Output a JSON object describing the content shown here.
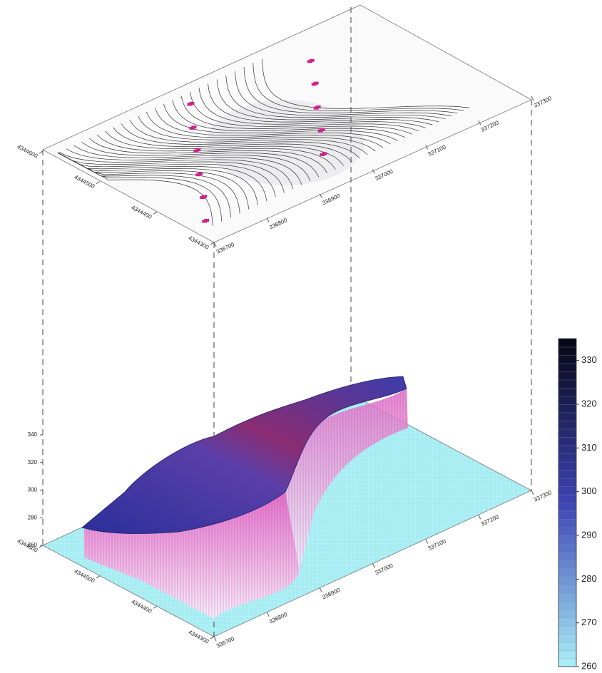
{
  "chart_data": {
    "type": "surface3d",
    "xlim": [
      336700,
      337300
    ],
    "xticks": [
      336700,
      336800,
      336900,
      337000,
      337100,
      337200,
      337300
    ],
    "ylim": [
      4344300,
      4344600
    ],
    "yticks": [
      4344300,
      4344400,
      4344500,
      4344600
    ],
    "zlim": [
      260,
      340
    ],
    "zticks": [
      260,
      280,
      300,
      320,
      340
    ],
    "colorbar": {
      "lim": [
        260,
        335
      ],
      "ticks": [
        260,
        270,
        280,
        290,
        300,
        310,
        320,
        330
      ],
      "colors": [
        "#a8ecf6",
        "#3d44b4",
        "#080818"
      ]
    }
  }
}
